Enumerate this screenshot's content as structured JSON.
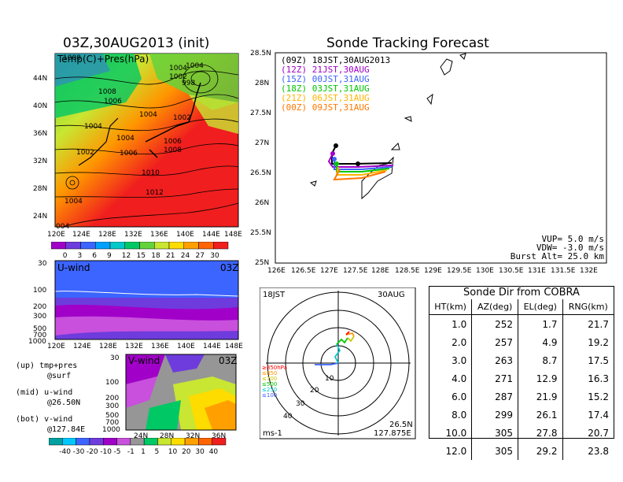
{
  "left_map": {
    "title": "03Z,30AUG2013 (init)",
    "field_label": "Temp(C)+Pres(hPa)",
    "lat_ticks": [
      "44N",
      "40N",
      "36N",
      "32N",
      "28N",
      "24N"
    ],
    "lon_ticks": [
      "120E",
      "124E",
      "128E",
      "132E",
      "136E",
      "140E",
      "144E",
      "148E"
    ],
    "isobar_labels": [
      "1008",
      "1004",
      "1002",
      "1004",
      "998",
      "1008",
      "1006",
      "1004",
      "1002",
      "1004",
      "1004",
      "1006",
      "1008",
      "1002",
      "1006",
      "1010",
      "1012",
      "1004",
      "004"
    ],
    "colorbar": {
      "labels": [
        "0",
        "3",
        "6",
        "9",
        "12",
        "15",
        "18",
        "21",
        "24",
        "27",
        "30"
      ],
      "colors": [
        "#a000c8",
        "#6e3cdc",
        "#3c64ff",
        "#00a0ff",
        "#00c8c8",
        "#00c864",
        "#64d23c",
        "#c8e632",
        "#ffdc00",
        "#ffa000",
        "#ff6400",
        "#f01e1e"
      ]
    }
  },
  "uwind": {
    "label": "U-wind",
    "time": "03Z",
    "y_ticks": [
      "30",
      "100",
      "200",
      "300",
      "500",
      "700",
      "1000"
    ],
    "x_ticks": [
      "120E",
      "124E",
      "128E",
      "132E",
      "136E",
      "140E",
      "144E",
      "148E"
    ]
  },
  "vwind": {
    "label": "V-wind",
    "time": "03Z",
    "y_ticks": [
      "30",
      "100",
      "200",
      "300",
      "500",
      "700",
      "1000"
    ],
    "x_ticks": [
      "24N",
      "28N",
      "32N",
      "36N"
    ],
    "colorbar": {
      "labels": [
        "-40",
        "-30",
        "-20",
        "-10",
        "-5",
        "-1",
        "1",
        "5",
        "10",
        "20",
        "30",
        "40"
      ],
      "colors": [
        "#00a0a0",
        "#00c8ff",
        "#3c64ff",
        "#6e3cdc",
        "#a000c8",
        "#c850dc",
        "#969696",
        "#00c864",
        "#c8e632",
        "#ffdc00",
        "#ffa000",
        "#ff6400",
        "#f01e1e"
      ]
    }
  },
  "legend_text": {
    "up": "(up) tmp+pres",
    "up2": "@surf",
    "mid": "(mid) u-wind",
    "mid2": "@26.50N",
    "bot": "(bot) v-wind",
    "bot2": "@127.84E"
  },
  "track": {
    "title": "Sonde Tracking Forecast",
    "lat_ticks": [
      "28.5N",
      "28N",
      "27.5N",
      "27N",
      "26.5N",
      "26N",
      "25.5N",
      "25N"
    ],
    "lon_ticks": [
      "126E",
      "126.5E",
      "127E",
      "127.5E",
      "128E",
      "128.5E",
      "129E",
      "129.5E",
      "130E",
      "130.5E",
      "131E",
      "131.5E",
      "132E"
    ],
    "legend": [
      {
        "text": "(09Z)  18JST,30AUG2013",
        "color": "#000000"
      },
      {
        "text": "(12Z)  21JST,30AUG",
        "color": "#a000c8"
      },
      {
        "text": "(15Z)  00JST,31AUG",
        "color": "#3c64ff"
      },
      {
        "text": "(18Z)  03JST,31AUG",
        "color": "#00c800"
      },
      {
        "text": "(21Z)  06JST,31AUG",
        "color": "#ffb400"
      },
      {
        "text": "(00Z)  09JST,31AUG",
        "color": "#ff7800"
      }
    ],
    "params": {
      "vup": "VUP=  5.0  m/s",
      "vdw": "VDW=  -3.0  m/s",
      "burst": "Burst Alt=  25.0  km"
    }
  },
  "polar": {
    "time": "18JST",
    "date": "30AUG",
    "pos_lat": "26.5N",
    "pos_lon": "127.875E",
    "unit": "ms-1",
    "ring_labels": [
      "10",
      "20",
      "30",
      "40"
    ],
    "pressure_legend": [
      {
        "text": "≥850hPa",
        "color": "#ff0000"
      },
      {
        "text": "≤850",
        "color": "#ff9600"
      },
      {
        "text": "≤700",
        "color": "#c8c800"
      },
      {
        "text": "≤500",
        "color": "#00c800"
      },
      {
        "text": "≤250",
        "color": "#00c8c8"
      },
      {
        "text": "≤100",
        "color": "#3c64ff"
      }
    ]
  },
  "sonde_table": {
    "title": "Sonde Dir from COBRA",
    "headers": [
      "HT(km)",
      "AZ(deg)",
      "EL(deg)",
      "RNG(km)"
    ],
    "rows": [
      [
        "1.0",
        "252",
        "1.7",
        "21.7"
      ],
      [
        "2.0",
        "257",
        "4.9",
        "19.2"
      ],
      [
        "3.0",
        "263",
        "8.7",
        "17.5"
      ],
      [
        "4.0",
        "271",
        "12.9",
        "16.3"
      ],
      [
        "6.0",
        "287",
        "21.9",
        "15.2"
      ],
      [
        "8.0",
        "299",
        "26.1",
        "17.4"
      ],
      [
        "10.0",
        "305",
        "27.8",
        "20.7"
      ],
      [
        "12.0",
        "305",
        "29.2",
        "23.8"
      ]
    ]
  }
}
